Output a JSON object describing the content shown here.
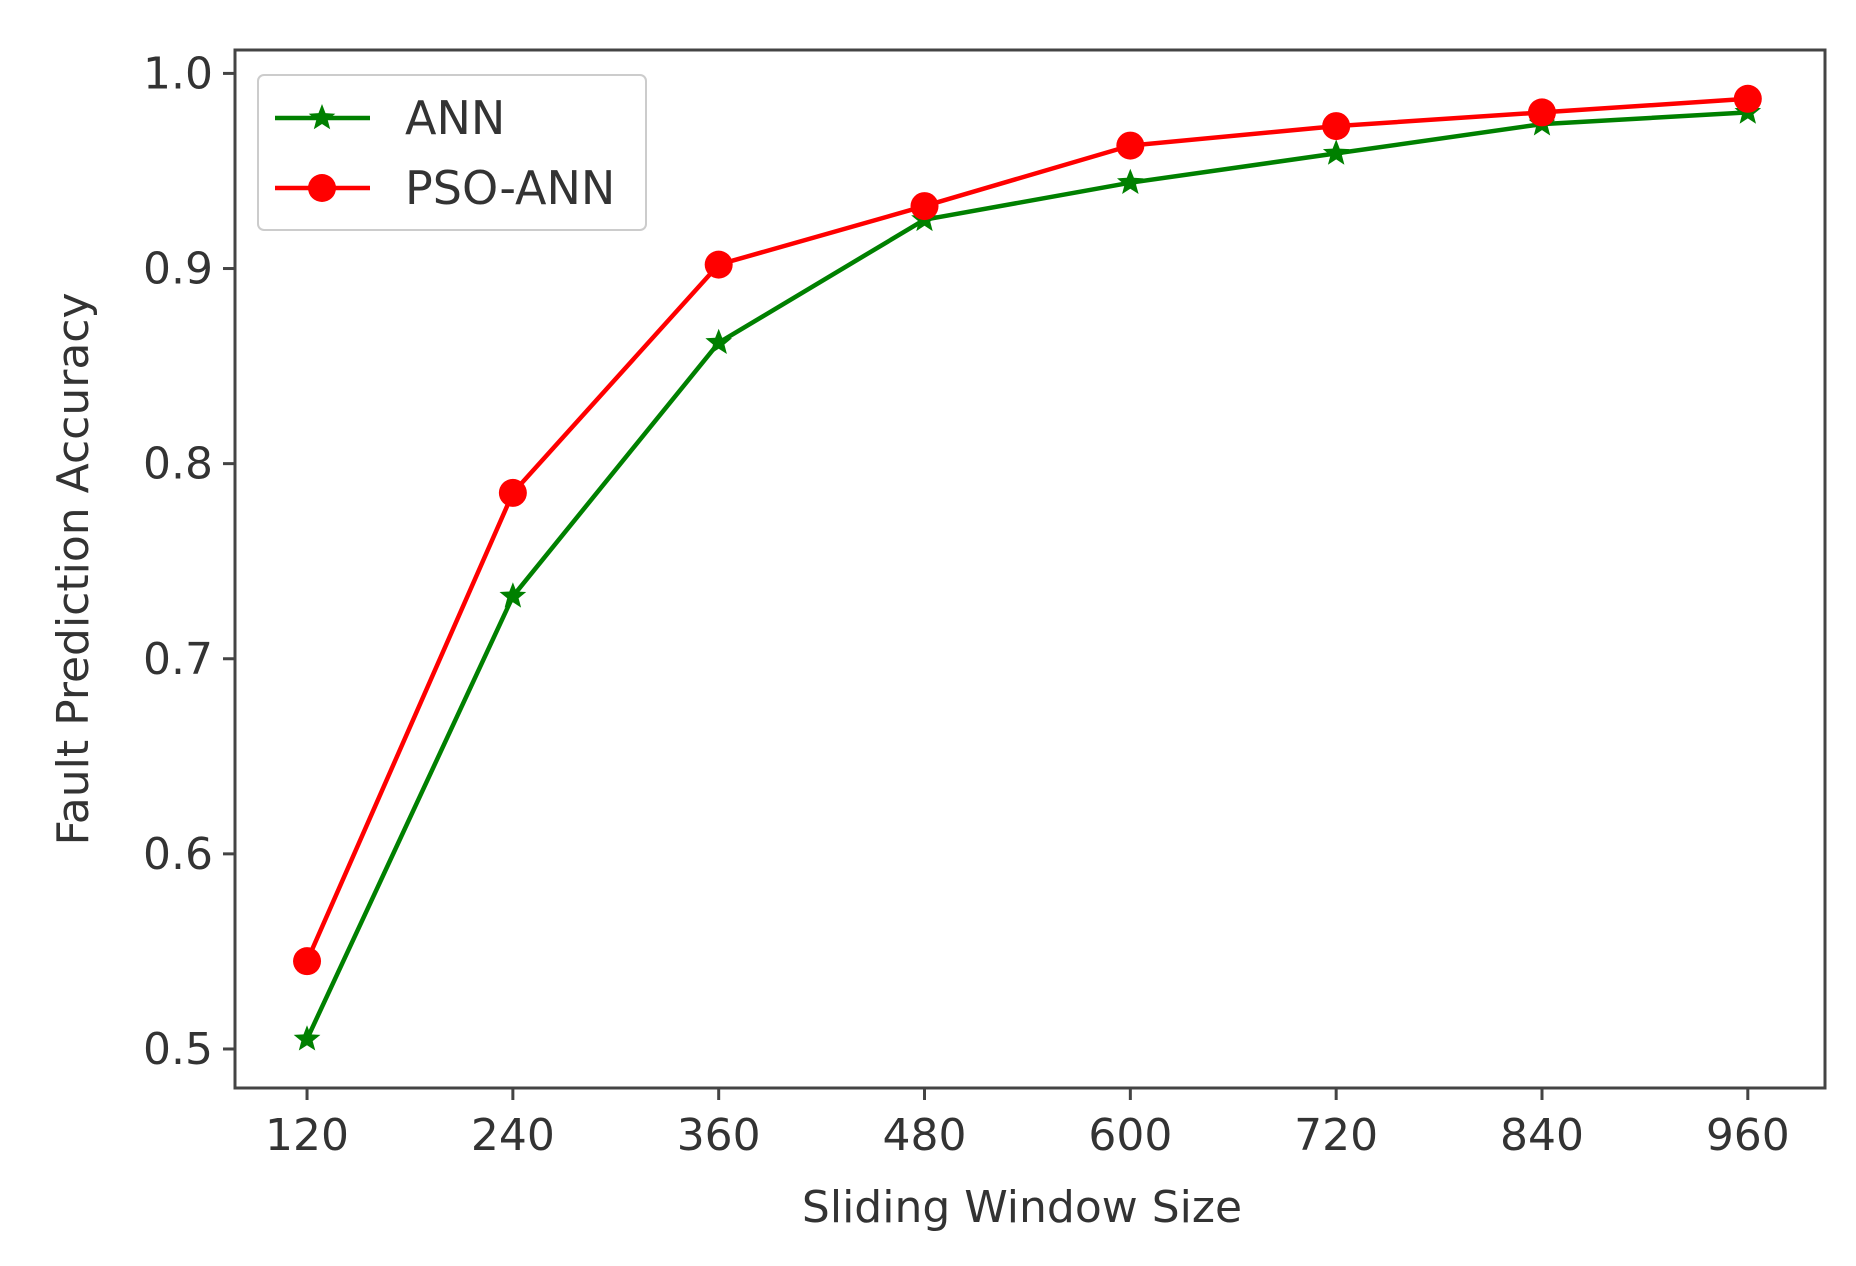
{
  "chart_data": {
    "type": "line",
    "title": "",
    "xlabel": "Sliding Window Size",
    "ylabel": "Fault Prediction Accuracy",
    "x": [
      120,
      240,
      360,
      480,
      600,
      720,
      840,
      960
    ],
    "x_tick_labels": [
      "120",
      "240",
      "360",
      "480",
      "600",
      "720",
      "840",
      "960"
    ],
    "xlim": [
      78,
      1005
    ],
    "ylim": [
      0.48,
      1.012
    ],
    "y_ticks": [
      0.5,
      0.6,
      0.7,
      0.8,
      0.9,
      1.0
    ],
    "y_tick_labels": [
      "0.5",
      "0.6",
      "0.7",
      "0.8",
      "0.9",
      "1.0"
    ],
    "grid": false,
    "legend_position": "upper-left",
    "series": [
      {
        "name": "ANN",
        "color": "#008000",
        "marker": "star",
        "values": [
          0.505,
          0.732,
          0.862,
          0.925,
          0.944,
          0.959,
          0.974,
          0.98
        ]
      },
      {
        "name": "PSO-ANN",
        "color": "#ff0000",
        "marker": "circle",
        "values": [
          0.545,
          0.785,
          0.902,
          0.932,
          0.963,
          0.973,
          0.98,
          0.987
        ]
      }
    ]
  }
}
